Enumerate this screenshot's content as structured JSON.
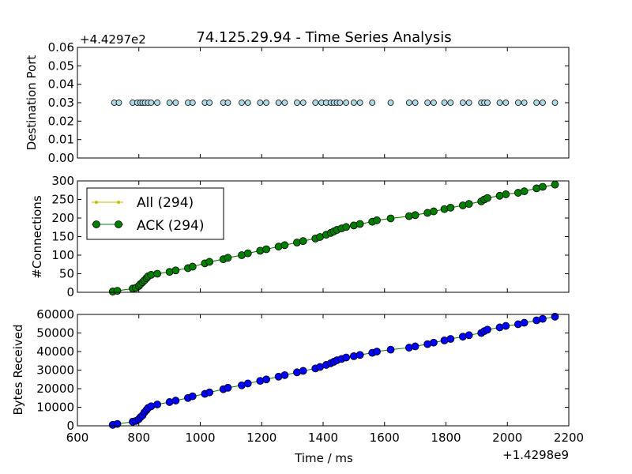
{
  "figure_title": "74.125.29.94 - Time Series Analysis",
  "xlabel": "Time / ms",
  "x_offset_label": "+1.4298e9",
  "xlim": [
    600,
    2200
  ],
  "xticks": [
    "600",
    "800",
    "1000",
    "1200",
    "1400",
    "1600",
    "1800",
    "2000",
    "2200"
  ],
  "colors": {
    "scatter": "#add8e6",
    "all": "#bfbf00",
    "ack": "#008000",
    "bytes": "#0000ff"
  },
  "chart_data": [
    {
      "type": "scatter",
      "title": "74.125.29.94 - Time Series Analysis",
      "ylabel": "Destination Port",
      "y_offset_label": "+4.4297e2",
      "ylim": [
        0,
        0.06
      ],
      "yticks": [
        "0.00",
        "0.01",
        "0.02",
        "0.03",
        "0.04",
        "0.05",
        "0.06"
      ],
      "x": [
        720,
        735,
        780,
        795,
        805,
        812,
        820,
        830,
        840,
        860,
        900,
        920,
        960,
        975,
        1015,
        1030,
        1075,
        1090,
        1135,
        1155,
        1195,
        1215,
        1255,
        1275,
        1315,
        1335,
        1375,
        1395,
        1410,
        1425,
        1435,
        1445,
        1455,
        1475,
        1500,
        1520,
        1560,
        1620,
        1680,
        1700,
        1740,
        1760,
        1795,
        1815,
        1855,
        1875,
        1915,
        1925,
        1935,
        1975,
        1995,
        2035,
        2055,
        2095,
        2115,
        2155
      ],
      "y": 0.03,
      "grid": false
    },
    {
      "type": "line",
      "ylabel": "#Connections",
      "ylim": [
        0,
        300
      ],
      "yticks": [
        "0",
        "50",
        "100",
        "150",
        "200",
        "250",
        "300"
      ],
      "legend_position": "top-left",
      "legend": [
        "All (294)",
        "ACK (294)"
      ],
      "series": [
        {
          "name": "ACK (294)",
          "x": [
            715,
            730,
            780,
            790,
            800,
            805,
            812,
            818,
            825,
            830,
            840,
            860,
            900,
            920,
            960,
            975,
            1015,
            1030,
            1075,
            1090,
            1135,
            1155,
            1195,
            1215,
            1255,
            1275,
            1315,
            1335,
            1375,
            1390,
            1410,
            1425,
            1435,
            1445,
            1460,
            1475,
            1500,
            1520,
            1560,
            1575,
            1620,
            1680,
            1700,
            1740,
            1760,
            1795,
            1815,
            1855,
            1875,
            1915,
            1925,
            1935,
            1975,
            1995,
            2035,
            2055,
            2095,
            2115,
            2155
          ],
          "y": [
            2,
            4,
            10,
            12,
            17,
            22,
            27,
            32,
            38,
            43,
            47,
            50,
            55,
            59,
            65,
            69,
            78,
            82,
            89,
            93,
            100,
            105,
            112,
            116,
            123,
            127,
            134,
            138,
            145,
            149,
            155,
            160,
            164,
            168,
            172,
            176,
            180,
            184,
            190,
            194,
            199,
            205,
            208,
            214,
            218,
            224,
            228,
            234,
            238,
            245,
            250,
            254,
            260,
            264,
            268,
            272,
            280,
            284,
            290
          ]
        }
      ],
      "grid": false
    },
    {
      "type": "line",
      "ylabel": "Bytes Received",
      "ylim": [
        0,
        60000
      ],
      "yticks": [
        "0",
        "10000",
        "20000",
        "30000",
        "40000",
        "50000",
        "60000"
      ],
      "series": [
        {
          "name": "Bytes Received",
          "x": [
            715,
            730,
            780,
            790,
            800,
            805,
            812,
            818,
            825,
            830,
            840,
            860,
            900,
            920,
            960,
            975,
            1015,
            1030,
            1075,
            1090,
            1135,
            1155,
            1195,
            1215,
            1255,
            1275,
            1315,
            1335,
            1375,
            1390,
            1410,
            1425,
            1435,
            1445,
            1460,
            1475,
            1500,
            1520,
            1560,
            1575,
            1620,
            1680,
            1700,
            1740,
            1760,
            1795,
            1815,
            1855,
            1875,
            1915,
            1925,
            1935,
            1975,
            1995,
            2035,
            2055,
            2095,
            2115,
            2155
          ],
          "y": [
            500,
            1000,
            2200,
            2600,
            3600,
            4600,
            5600,
            7200,
            8500,
            9600,
            10500,
            11500,
            12800,
            13600,
            15000,
            15900,
            17200,
            18000,
            19700,
            20500,
            21800,
            22800,
            24200,
            25000,
            26500,
            27300,
            28800,
            29600,
            30900,
            31700,
            32800,
            33700,
            34500,
            35300,
            36000,
            36800,
            37500,
            38200,
            39300,
            40000,
            41000,
            42100,
            42800,
            44000,
            44800,
            46000,
            46800,
            48000,
            48800,
            50000,
            51000,
            51800,
            53000,
            53800,
            54700,
            55500,
            56800,
            57600,
            58800
          ]
        }
      ],
      "grid": false
    }
  ]
}
